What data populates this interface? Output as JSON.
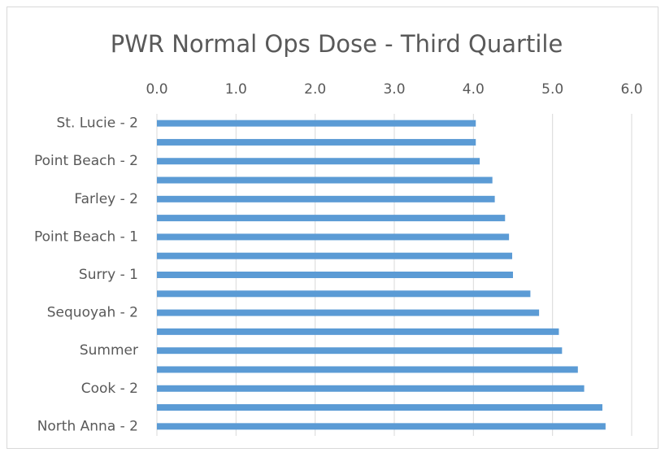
{
  "chart_data": {
    "type": "bar",
    "orientation": "horizontal",
    "title": "PWR Normal Ops Dose - Third Quartile",
    "categories": [
      "St. Lucie - 2",
      null,
      "Point Beach - 2",
      null,
      "Farley - 2",
      null,
      "Point Beach - 1",
      null,
      "Surry - 1",
      null,
      "Sequoyah - 2",
      null,
      "Summer",
      null,
      "Cook - 2",
      null,
      "North Anna - 2"
    ],
    "values": [
      4.03,
      4.03,
      4.08,
      4.24,
      4.27,
      4.4,
      4.45,
      4.49,
      4.5,
      4.72,
      4.83,
      5.08,
      5.12,
      5.32,
      5.4,
      5.63,
      5.67
    ],
    "color": "#5b9bd5",
    "xlim": [
      0,
      6
    ],
    "xticks": [
      {
        "value": 0,
        "label": "0.0"
      },
      {
        "value": 1,
        "label": "1.0"
      },
      {
        "value": 2,
        "label": "2.0"
      },
      {
        "value": 3,
        "label": "3.0"
      },
      {
        "value": 4,
        "label": "4.0"
      },
      {
        "value": 5,
        "label": "5.0"
      },
      {
        "value": 6,
        "label": "6.0"
      }
    ],
    "grid": true
  }
}
